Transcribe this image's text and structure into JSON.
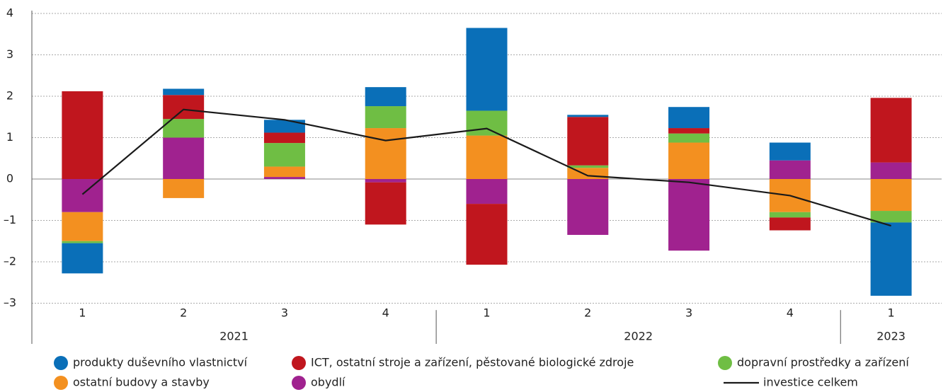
{
  "chart_data": {
    "type": "bar",
    "stacked": true,
    "categories": [
      "1",
      "2",
      "3",
      "4",
      "1",
      "2",
      "3",
      "4",
      "1"
    ],
    "groups": [
      {
        "label": "2021",
        "size": 4
      },
      {
        "label": "2022",
        "size": 4
      },
      {
        "label": "2023",
        "size": 1
      }
    ],
    "series": [
      {
        "name": "produkty duševního vlastnictví",
        "color": "#0a6fb8",
        "values": [
          -0.73,
          0.15,
          0.31,
          0.46,
          2.0,
          0.05,
          0.51,
          0.43,
          -1.77
        ]
      },
      {
        "name": "ICT, ostatní stroje a zařízení, pěstované biologické zdroje",
        "color": "#c0161e",
        "values": [
          2.12,
          0.58,
          0.25,
          -1.02,
          -1.47,
          1.17,
          0.13,
          -0.31,
          1.56
        ]
      },
      {
        "name": "dopravní prostředky a zařízení",
        "color": "#6fbe44",
        "values": [
          -0.05,
          0.45,
          0.57,
          0.53,
          0.6,
          0.06,
          0.22,
          -0.13,
          -0.28
        ]
      },
      {
        "name": "ostatní budovy a stavby",
        "color": "#f39020",
        "values": [
          -0.7,
          -0.46,
          0.25,
          1.23,
          1.05,
          0.27,
          0.88,
          -0.8,
          -0.77
        ]
      },
      {
        "name": "obydlí",
        "color": "#a0228f",
        "values": [
          -0.8,
          1.0,
          0.05,
          -0.08,
          -0.6,
          -1.35,
          -1.73,
          0.45,
          0.4
        ]
      },
      {
        "name": "investice celkem",
        "type": "line",
        "color": "#1a1a1a",
        "values": [
          -0.37,
          1.68,
          1.43,
          0.93,
          1.22,
          0.08,
          -0.08,
          -0.4,
          -1.13
        ]
      }
    ],
    "ylim": [
      -3.2,
      4
    ],
    "yticks": [
      {
        "value": -3,
        "label": "–3"
      },
      {
        "value": -2,
        "label": "–2"
      },
      {
        "value": -1,
        "label": "–1"
      },
      0,
      1,
      2,
      3,
      4
    ],
    "grid": true
  }
}
